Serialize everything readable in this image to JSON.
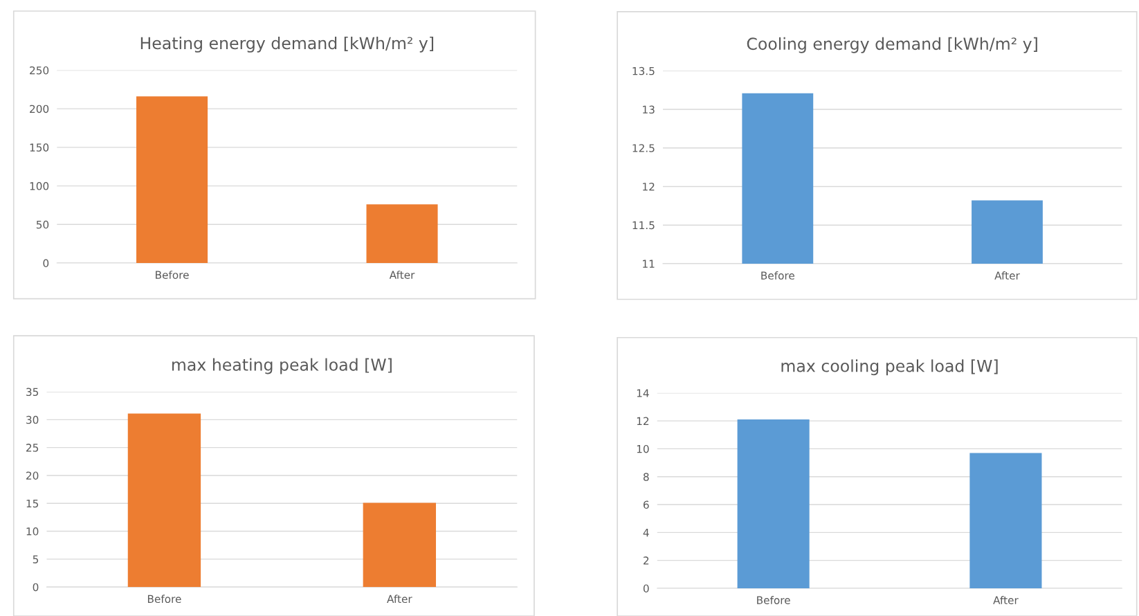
{
  "chart_data": [
    {
      "type": "bar",
      "title": "Heating energy demand [kWh/m² y]",
      "categories": [
        "Before",
        "After"
      ],
      "values": [
        216,
        76
      ],
      "color": "#ed7d31",
      "ylim": [
        0,
        250
      ],
      "yticks": [
        0,
        50,
        100,
        150,
        200,
        250
      ],
      "grid": "y"
    },
    {
      "type": "bar",
      "title": "Cooling energy demand [kWh/m² y]",
      "categories": [
        "Before",
        "After"
      ],
      "values": [
        13.21,
        11.82
      ],
      "color": "#5b9bd5",
      "ylim": [
        11,
        13.5
      ],
      "yticks": [
        11,
        11.5,
        12,
        12.5,
        13,
        13.5
      ],
      "grid": "y"
    },
    {
      "type": "bar",
      "title": "max heating peak load [W]",
      "categories": [
        "Before",
        "After"
      ],
      "values": [
        31.1,
        15.1
      ],
      "color": "#ed7d31",
      "ylim": [
        0,
        35
      ],
      "yticks": [
        0,
        5,
        10,
        15,
        20,
        25,
        30,
        35
      ],
      "grid": "y"
    },
    {
      "type": "bar",
      "title": "max cooling peak load [W]",
      "categories": [
        "Before",
        "After"
      ],
      "values": [
        12.1,
        9.7
      ],
      "color": "#5b9bd5",
      "ylim": [
        0,
        14
      ],
      "yticks": [
        0,
        2,
        4,
        6,
        8,
        10,
        12,
        14
      ],
      "grid": "y"
    }
  ]
}
